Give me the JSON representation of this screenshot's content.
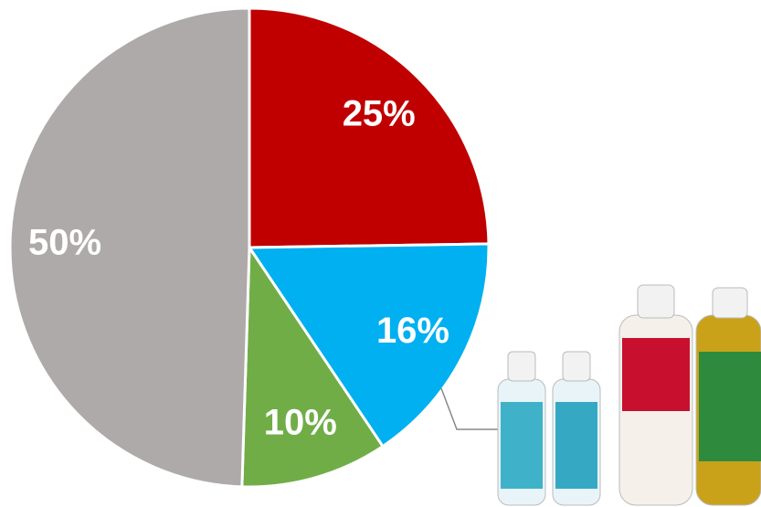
{
  "chart_data": {
    "type": "pie",
    "categories": [
      null,
      null,
      null,
      null
    ],
    "values": [
      25,
      16,
      10,
      50
    ],
    "value_labels": [
      "25%",
      "16%",
      "10%",
      "50%"
    ],
    "colors": [
      "#c00000",
      "#00b0f0",
      "#70ad47",
      "#aeaaaa"
    ]
  }
}
